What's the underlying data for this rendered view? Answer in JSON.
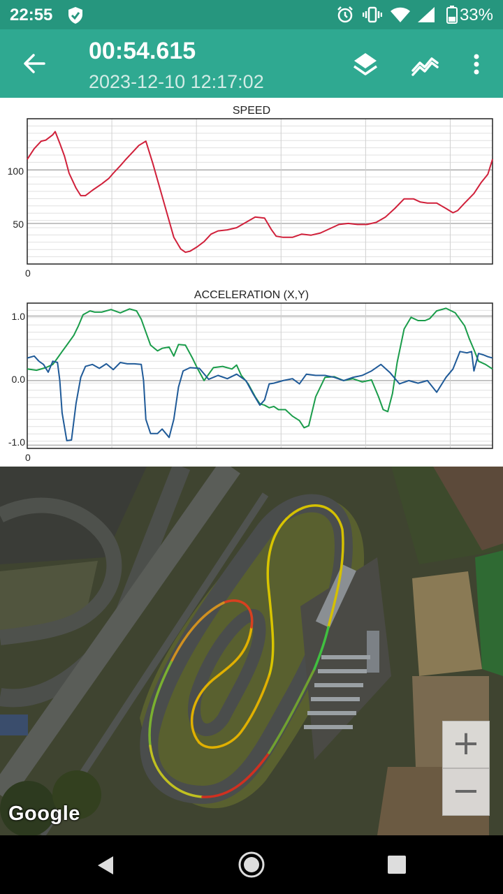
{
  "status_bar": {
    "time": "22:55",
    "battery": "33%"
  },
  "app_bar": {
    "title": "00:54.615",
    "subtitle": "2023-12-10 12:17:02"
  },
  "charts": {
    "speed": {
      "title": "SPEED",
      "y_ticks": [
        "100",
        "50"
      ],
      "x_start": "0"
    },
    "accel": {
      "title": "ACCELERATION (X,Y)",
      "y_ticks": [
        "1.0",
        "0.0",
        "-1.0"
      ],
      "x_start": "0"
    }
  },
  "chart_data": [
    {
      "type": "line",
      "title": "SPEED",
      "xlabel": "",
      "ylabel": "",
      "ylim": [
        12,
        148
      ],
      "xlim": [
        0,
        100
      ],
      "grid": true,
      "series": [
        {
          "color": "#d0203a",
          "x": [
            0,
            1.5,
            3,
            4,
            5.5,
            6,
            7,
            8,
            9,
            10.5,
            11.5,
            12.5,
            14,
            16,
            17.5,
            18.5,
            20,
            21,
            22.5,
            24,
            25.5,
            27,
            28.5,
            30,
            31.5,
            33,
            34,
            35,
            36.5,
            38,
            39.5,
            41,
            43,
            45,
            47,
            49,
            51,
            52.5,
            53.5,
            55,
            57,
            59,
            61,
            63,
            65,
            67,
            69,
            71,
            73,
            75,
            77,
            79,
            81,
            83,
            84.5,
            86,
            88,
            90,
            91.5,
            92.5,
            94,
            96,
            97.5,
            99,
            100
          ],
          "y": [
            110,
            120,
            127,
            128,
            133,
            136,
            125,
            113,
            97,
            83,
            76,
            76,
            81,
            87,
            92,
            97,
            104,
            109,
            116,
            123,
            127,
            106,
            83,
            60,
            37,
            26,
            23,
            24,
            28,
            33,
            40,
            43,
            44,
            46,
            51,
            56,
            55,
            44,
            38,
            37,
            37,
            40,
            39,
            41,
            45,
            49,
            50,
            49,
            49,
            51,
            56,
            64,
            73,
            73,
            70,
            69,
            69,
            64,
            60,
            62,
            69,
            78,
            88,
            96,
            110
          ]
        }
      ]
    },
    {
      "type": "line",
      "title": "ACCELERATION (X,Y)",
      "xlabel": "",
      "ylabel": "",
      "ylim": [
        -1.05,
        1.2
      ],
      "xlim": [
        0,
        100
      ],
      "grid": true,
      "series": [
        {
          "color": "#1a9c4a",
          "x": [
            0,
            2,
            4,
            5.5,
            6.5,
            7.5,
            8.5,
            10,
            11,
            12,
            13.5,
            14.5,
            16,
            18,
            20,
            22,
            23.5,
            24.5,
            25.5,
            26.5,
            28,
            29,
            30.5,
            31.5,
            32.5,
            34,
            35.5,
            36.5,
            38,
            40,
            42,
            44,
            45,
            46,
            47.5,
            49,
            50,
            51,
            52,
            53,
            54,
            55.5,
            57,
            58.5,
            59.5,
            60.5,
            62,
            64,
            66,
            68,
            70,
            72,
            74,
            75.5,
            76.5,
            77.5,
            78.5,
            79.5,
            81,
            82.5,
            84,
            85.5,
            86.5,
            88,
            90,
            92,
            94,
            95,
            96,
            97,
            98.5,
            100
          ],
          "y": [
            0.18,
            0.16,
            0.2,
            0.25,
            0.35,
            0.45,
            0.55,
            0.7,
            0.85,
            1.02,
            1.08,
            1.06,
            1.06,
            1.1,
            1.05,
            1.11,
            1.08,
            0.95,
            0.75,
            0.55,
            0.46,
            0.5,
            0.52,
            0.38,
            0.56,
            0.55,
            0.35,
            0.2,
            0.0,
            0.2,
            0.22,
            0.18,
            0.24,
            0.08,
            -0.05,
            -0.25,
            -0.36,
            -0.38,
            -0.42,
            -0.4,
            -0.45,
            -0.45,
            -0.55,
            -0.62,
            -0.73,
            -0.7,
            -0.25,
            0.05,
            0.06,
            0.0,
            0.03,
            -0.02,
            0.01,
            -0.25,
            -0.45,
            -0.48,
            -0.2,
            0.28,
            0.8,
            0.98,
            0.93,
            0.93,
            0.96,
            1.08,
            1.12,
            1.05,
            0.85,
            0.65,
            0.48,
            0.3,
            0.25,
            0.18
          ]
        },
        {
          "color": "#1f5a98",
          "x": [
            0,
            1.5,
            2.5,
            3.5,
            4.5,
            5.5,
            6.5,
            7,
            7.5,
            8.5,
            9.5,
            10.5,
            11.5,
            12.5,
            14,
            15.5,
            17,
            18.5,
            20,
            21.5,
            23,
            24.5,
            25,
            25.5,
            26.5,
            28,
            29,
            30.5,
            31.5,
            32.5,
            33.5,
            35,
            37,
            39,
            41,
            43,
            45,
            47,
            48.5,
            50,
            51,
            52,
            53,
            55,
            57,
            58.5,
            60,
            62,
            64,
            66,
            68,
            70,
            72,
            74,
            76,
            78,
            80,
            82,
            84,
            86,
            88,
            90,
            91.5,
            93,
            94.5,
            95.5,
            96,
            97,
            98,
            99,
            100
          ],
          "y": [
            0.35,
            0.38,
            0.3,
            0.25,
            0.13,
            0.3,
            0.28,
            0.0,
            -0.5,
            -0.93,
            -0.92,
            -0.35,
            0.05,
            0.22,
            0.25,
            0.19,
            0.26,
            0.17,
            0.28,
            0.26,
            0.26,
            0.25,
            0.0,
            -0.6,
            -0.82,
            -0.82,
            -0.75,
            -0.88,
            -0.6,
            -0.1,
            0.15,
            0.2,
            0.19,
            0.02,
            0.08,
            0.03,
            0.1,
            0.0,
            -0.2,
            -0.38,
            -0.3,
            -0.05,
            -0.04,
            0.0,
            0.03,
            -0.05,
            0.1,
            0.08,
            0.08,
            0.05,
            0.0,
            0.05,
            0.08,
            0.15,
            0.25,
            0.12,
            -0.05,
            0.0,
            -0.04,
            0.0,
            -0.18,
            0.05,
            0.18,
            0.45,
            0.43,
            0.45,
            0.15,
            0.42,
            0.4,
            0.37,
            0.35
          ]
        }
      ]
    }
  ]
}
